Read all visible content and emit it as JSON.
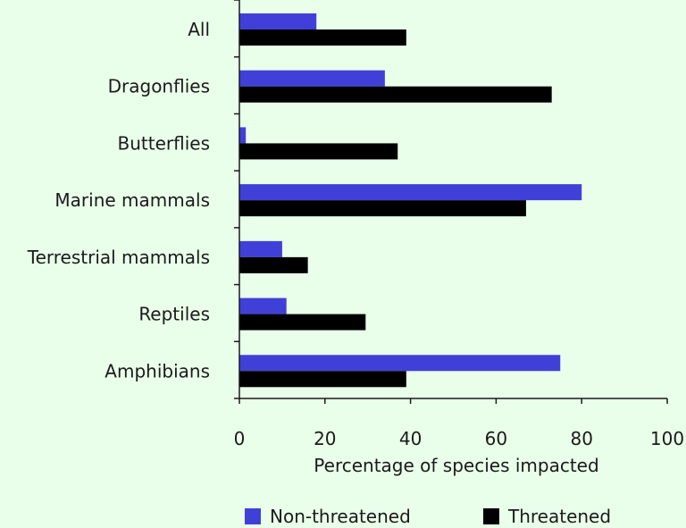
{
  "chart_data": {
    "type": "bar",
    "orientation": "horizontal",
    "categories": [
      "All",
      "Dragonflies",
      "Butterflies",
      "Marine mammals",
      "Terrestrial mammals",
      "Reptiles",
      "Amphibians"
    ],
    "series": [
      {
        "name": "Non-threatened",
        "color": "#4040d8",
        "values": [
          18,
          34,
          1.5,
          80,
          10,
          11,
          75
        ]
      },
      {
        "name": "Threatened",
        "color": "#000000",
        "values": [
          39,
          73,
          37,
          67,
          16,
          29.5,
          39
        ]
      }
    ],
    "xlabel": "Percentage of species impacted",
    "ylabel": "",
    "title": "",
    "xlim": [
      0,
      100
    ],
    "xticks": [
      "0",
      "20",
      "40",
      "60",
      "80",
      "100"
    ],
    "grid": false,
    "legend": "bottom"
  },
  "colors": {
    "background": "#eaffea",
    "axis": "#1a1a1a"
  }
}
